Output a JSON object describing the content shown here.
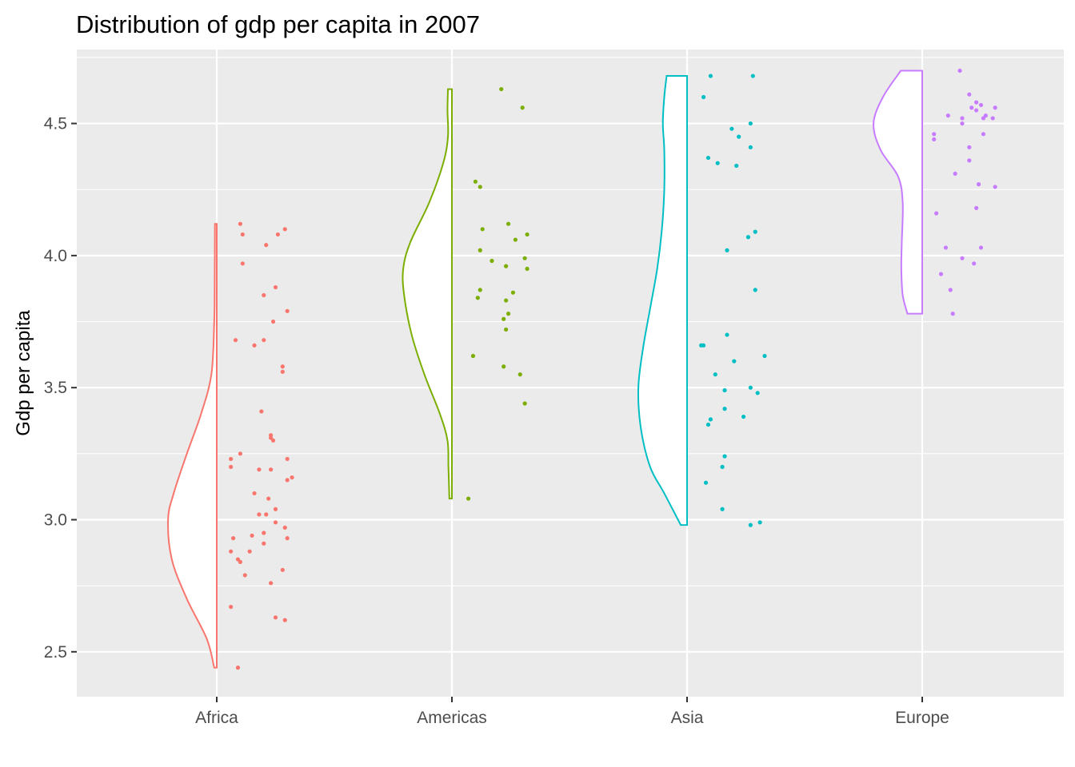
{
  "chart_data": {
    "type": "raincloud",
    "title": "Distribution of gdp per capita in 2007",
    "xlabel": "",
    "ylabel": "Gdp per capita",
    "ylim": [
      2.33,
      4.78
    ],
    "yticks": [
      2.5,
      3.0,
      3.5,
      4.0,
      4.5
    ],
    "yticks_labels": [
      "2.5",
      "3.0",
      "3.5",
      "4.0",
      "4.5"
    ],
    "categories": [
      "Africa",
      "Americas",
      "Asia",
      "Europe"
    ],
    "grid": true,
    "legend": "none",
    "series": [
      {
        "category": "Africa",
        "color": "#F8766D",
        "density": {
          "y": [
            2.44,
            2.55,
            2.7,
            2.85,
            3.0,
            3.1,
            3.25,
            3.4,
            3.55,
            3.75,
            3.9,
            4.12
          ],
          "width": [
            0.02,
            0.18,
            0.6,
            0.92,
            1.0,
            0.88,
            0.6,
            0.3,
            0.08,
            0.02,
            0.01,
            0.005
          ]
        },
        "points": [
          {
            "x": 0.1,
            "y": 4.12
          },
          {
            "x": 0.11,
            "y": 4.08
          },
          {
            "x": 0.21,
            "y": 4.04
          },
          {
            "x": 0.26,
            "y": 4.08
          },
          {
            "x": 0.29,
            "y": 4.1
          },
          {
            "x": 0.11,
            "y": 3.97
          },
          {
            "x": 0.25,
            "y": 3.88
          },
          {
            "x": 0.2,
            "y": 3.85
          },
          {
            "x": 0.3,
            "y": 3.79
          },
          {
            "x": 0.24,
            "y": 3.75
          },
          {
            "x": 0.08,
            "y": 3.68
          },
          {
            "x": 0.2,
            "y": 3.68
          },
          {
            "x": 0.16,
            "y": 3.66
          },
          {
            "x": 0.28,
            "y": 3.58
          },
          {
            "x": 0.28,
            "y": 3.56
          },
          {
            "x": 0.19,
            "y": 3.41
          },
          {
            "x": 0.23,
            "y": 3.32
          },
          {
            "x": 0.23,
            "y": 3.31
          },
          {
            "x": 0.24,
            "y": 3.3
          },
          {
            "x": 0.1,
            "y": 3.25
          },
          {
            "x": 0.06,
            "y": 3.23
          },
          {
            "x": 0.3,
            "y": 3.23
          },
          {
            "x": 0.06,
            "y": 3.2
          },
          {
            "x": 0.18,
            "y": 3.19
          },
          {
            "x": 0.23,
            "y": 3.19
          },
          {
            "x": 0.32,
            "y": 3.16
          },
          {
            "x": 0.3,
            "y": 3.15
          },
          {
            "x": 0.16,
            "y": 3.1
          },
          {
            "x": 0.22,
            "y": 3.08
          },
          {
            "x": 0.25,
            "y": 3.04
          },
          {
            "x": 0.18,
            "y": 3.02
          },
          {
            "x": 0.21,
            "y": 3.02
          },
          {
            "x": 0.25,
            "y": 2.99
          },
          {
            "x": 0.29,
            "y": 2.97
          },
          {
            "x": 0.2,
            "y": 2.95
          },
          {
            "x": 0.15,
            "y": 2.94
          },
          {
            "x": 0.07,
            "y": 2.93
          },
          {
            "x": 0.3,
            "y": 2.93
          },
          {
            "x": 0.2,
            "y": 2.91
          },
          {
            "x": 0.06,
            "y": 2.88
          },
          {
            "x": 0.14,
            "y": 2.88
          },
          {
            "x": 0.09,
            "y": 2.85
          },
          {
            "x": 0.1,
            "y": 2.84
          },
          {
            "x": 0.12,
            "y": 2.79
          },
          {
            "x": 0.28,
            "y": 2.81
          },
          {
            "x": 0.23,
            "y": 2.76
          },
          {
            "x": 0.06,
            "y": 2.67
          },
          {
            "x": 0.25,
            "y": 2.63
          },
          {
            "x": 0.29,
            "y": 2.62
          },
          {
            "x": 0.09,
            "y": 2.44
          }
        ]
      },
      {
        "category": "Americas",
        "color": "#7CAE00",
        "density": {
          "y": [
            3.08,
            3.2,
            3.3,
            3.4,
            3.55,
            3.7,
            3.85,
            3.95,
            4.05,
            4.2,
            4.35,
            4.45,
            4.55,
            4.63
          ],
          "width": [
            0.02,
            0.04,
            0.06,
            0.22,
            0.55,
            0.82,
            0.98,
            1.0,
            0.85,
            0.45,
            0.15,
            0.05,
            0.06,
            0.05
          ]
        },
        "points": [
          {
            "x": 0.21,
            "y": 4.63
          },
          {
            "x": 0.3,
            "y": 4.56
          },
          {
            "x": 0.1,
            "y": 4.28
          },
          {
            "x": 0.12,
            "y": 4.26
          },
          {
            "x": 0.24,
            "y": 4.12
          },
          {
            "x": 0.13,
            "y": 4.1
          },
          {
            "x": 0.32,
            "y": 4.08
          },
          {
            "x": 0.27,
            "y": 4.06
          },
          {
            "x": 0.12,
            "y": 4.02
          },
          {
            "x": 0.17,
            "y": 3.98
          },
          {
            "x": 0.31,
            "y": 3.99
          },
          {
            "x": 0.23,
            "y": 3.96
          },
          {
            "x": 0.32,
            "y": 3.95
          },
          {
            "x": 0.12,
            "y": 3.87
          },
          {
            "x": 0.26,
            "y": 3.86
          },
          {
            "x": 0.11,
            "y": 3.84
          },
          {
            "x": 0.23,
            "y": 3.83
          },
          {
            "x": 0.24,
            "y": 3.78
          },
          {
            "x": 0.22,
            "y": 3.76
          },
          {
            "x": 0.23,
            "y": 3.72
          },
          {
            "x": 0.09,
            "y": 3.62
          },
          {
            "x": 0.22,
            "y": 3.58
          },
          {
            "x": 0.29,
            "y": 3.55
          },
          {
            "x": 0.31,
            "y": 3.44
          },
          {
            "x": 0.07,
            "y": 3.08
          }
        ]
      },
      {
        "category": "Asia",
        "color": "#00BFC4",
        "density": {
          "y": [
            2.98,
            3.1,
            3.2,
            3.35,
            3.5,
            3.65,
            3.8,
            3.95,
            4.1,
            4.25,
            4.4,
            4.5,
            4.6,
            4.68
          ],
          "width": [
            0.1,
            0.45,
            0.75,
            0.95,
            1.0,
            0.9,
            0.75,
            0.6,
            0.5,
            0.45,
            0.45,
            0.48,
            0.45,
            0.4
          ]
        },
        "points": [
          {
            "x": 0.1,
            "y": 4.68
          },
          {
            "x": 0.28,
            "y": 4.68
          },
          {
            "x": 0.07,
            "y": 4.6
          },
          {
            "x": 0.27,
            "y": 4.5
          },
          {
            "x": 0.19,
            "y": 4.48
          },
          {
            "x": 0.22,
            "y": 4.45
          },
          {
            "x": 0.27,
            "y": 4.41
          },
          {
            "x": 0.09,
            "y": 4.37
          },
          {
            "x": 0.13,
            "y": 4.35
          },
          {
            "x": 0.21,
            "y": 4.34
          },
          {
            "x": 0.29,
            "y": 4.09
          },
          {
            "x": 0.26,
            "y": 4.07
          },
          {
            "x": 0.17,
            "y": 4.02
          },
          {
            "x": 0.29,
            "y": 3.87
          },
          {
            "x": 0.17,
            "y": 3.7
          },
          {
            "x": 0.06,
            "y": 3.66
          },
          {
            "x": 0.07,
            "y": 3.66
          },
          {
            "x": 0.33,
            "y": 3.62
          },
          {
            "x": 0.2,
            "y": 3.6
          },
          {
            "x": 0.12,
            "y": 3.55
          },
          {
            "x": 0.16,
            "y": 3.49
          },
          {
            "x": 0.27,
            "y": 3.5
          },
          {
            "x": 0.3,
            "y": 3.48
          },
          {
            "x": 0.16,
            "y": 3.42
          },
          {
            "x": 0.24,
            "y": 3.39
          },
          {
            "x": 0.1,
            "y": 3.38
          },
          {
            "x": 0.09,
            "y": 3.36
          },
          {
            "x": 0.16,
            "y": 3.24
          },
          {
            "x": 0.15,
            "y": 3.2
          },
          {
            "x": 0.08,
            "y": 3.14
          },
          {
            "x": 0.15,
            "y": 3.04
          },
          {
            "x": 0.31,
            "y": 2.99
          },
          {
            "x": 0.27,
            "y": 2.98
          }
        ]
      },
      {
        "category": "Europe",
        "color": "#C77CFF",
        "density": {
          "y": [
            3.78,
            3.85,
            3.95,
            4.05,
            4.2,
            4.3,
            4.4,
            4.5,
            4.6,
            4.7
          ],
          "width": [
            0.28,
            0.38,
            0.41,
            0.4,
            0.38,
            0.48,
            0.85,
            1.0,
            0.8,
            0.42
          ]
        },
        "points": [
          {
            "x": 0.16,
            "y": 4.7
          },
          {
            "x": 0.2,
            "y": 4.61
          },
          {
            "x": 0.23,
            "y": 4.58
          },
          {
            "x": 0.21,
            "y": 4.56
          },
          {
            "x": 0.25,
            "y": 4.57
          },
          {
            "x": 0.31,
            "y": 4.56
          },
          {
            "x": 0.23,
            "y": 4.55
          },
          {
            "x": 0.11,
            "y": 4.53
          },
          {
            "x": 0.27,
            "y": 4.53
          },
          {
            "x": 0.17,
            "y": 4.52
          },
          {
            "x": 0.26,
            "y": 4.52
          },
          {
            "x": 0.3,
            "y": 4.52
          },
          {
            "x": 0.17,
            "y": 4.5
          },
          {
            "x": 0.05,
            "y": 4.46
          },
          {
            "x": 0.26,
            "y": 4.46
          },
          {
            "x": 0.05,
            "y": 4.44
          },
          {
            "x": 0.2,
            "y": 4.41
          },
          {
            "x": 0.2,
            "y": 4.36
          },
          {
            "x": 0.14,
            "y": 4.31
          },
          {
            "x": 0.24,
            "y": 4.27
          },
          {
            "x": 0.31,
            "y": 4.26
          },
          {
            "x": 0.23,
            "y": 4.18
          },
          {
            "x": 0.06,
            "y": 4.16
          },
          {
            "x": 0.1,
            "y": 4.03
          },
          {
            "x": 0.25,
            "y": 4.03
          },
          {
            "x": 0.17,
            "y": 3.99
          },
          {
            "x": 0.22,
            "y": 3.97
          },
          {
            "x": 0.08,
            "y": 3.93
          },
          {
            "x": 0.12,
            "y": 3.87
          },
          {
            "x": 0.13,
            "y": 3.78
          }
        ]
      }
    ]
  }
}
